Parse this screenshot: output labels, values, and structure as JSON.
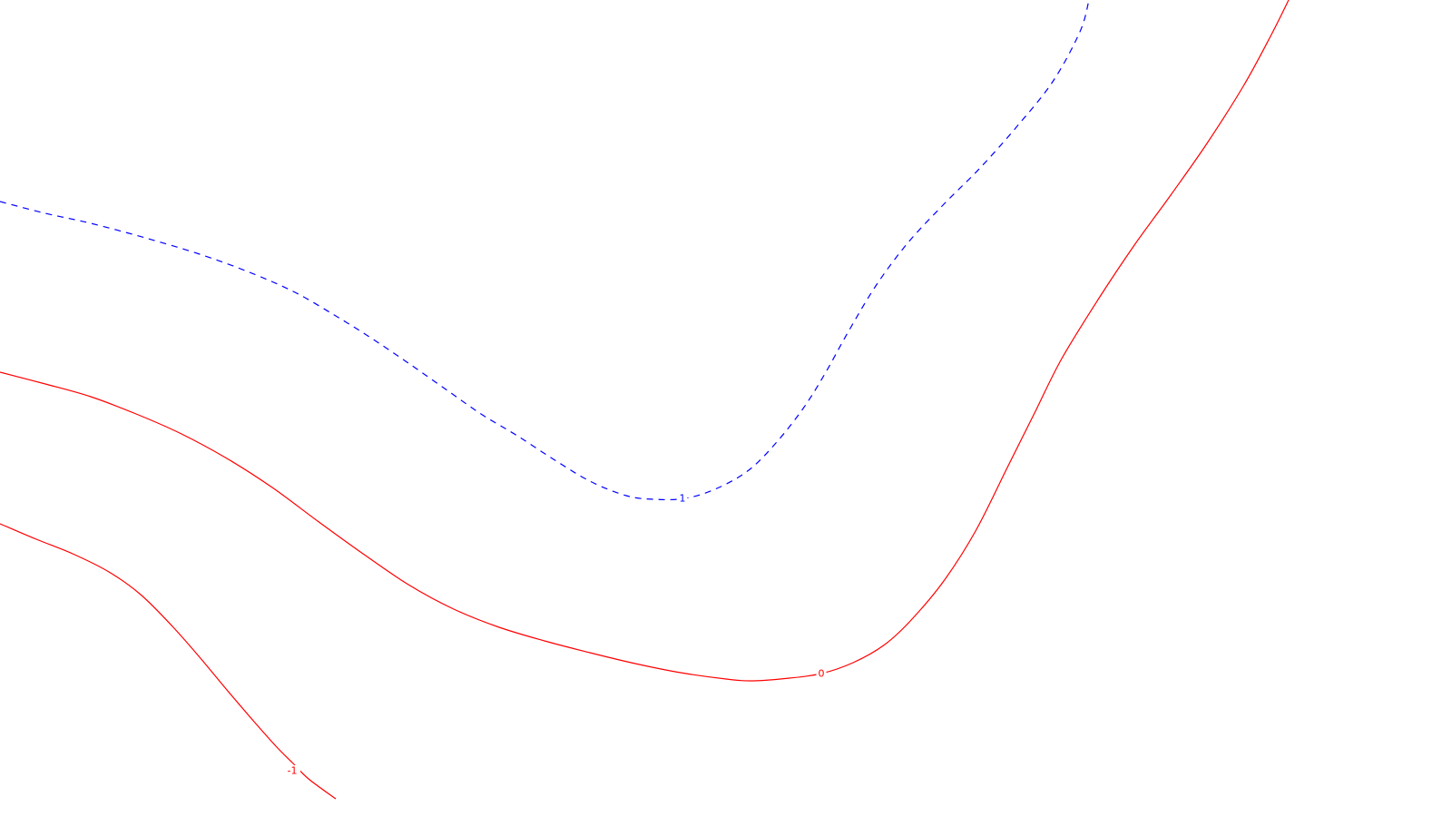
{
  "chart_data": {
    "type": "contour",
    "title": "",
    "xlabel": "",
    "ylabel": "",
    "grid": false,
    "levels": [
      {
        "value": 1,
        "label": "1",
        "color": "#0000ff",
        "style": "dashed"
      },
      {
        "value": 0,
        "label": "0",
        "color": "#ff0000",
        "style": "solid"
      },
      {
        "value": -1,
        "label": "-1",
        "color": "#ff0000",
        "style": "solid"
      }
    ]
  }
}
